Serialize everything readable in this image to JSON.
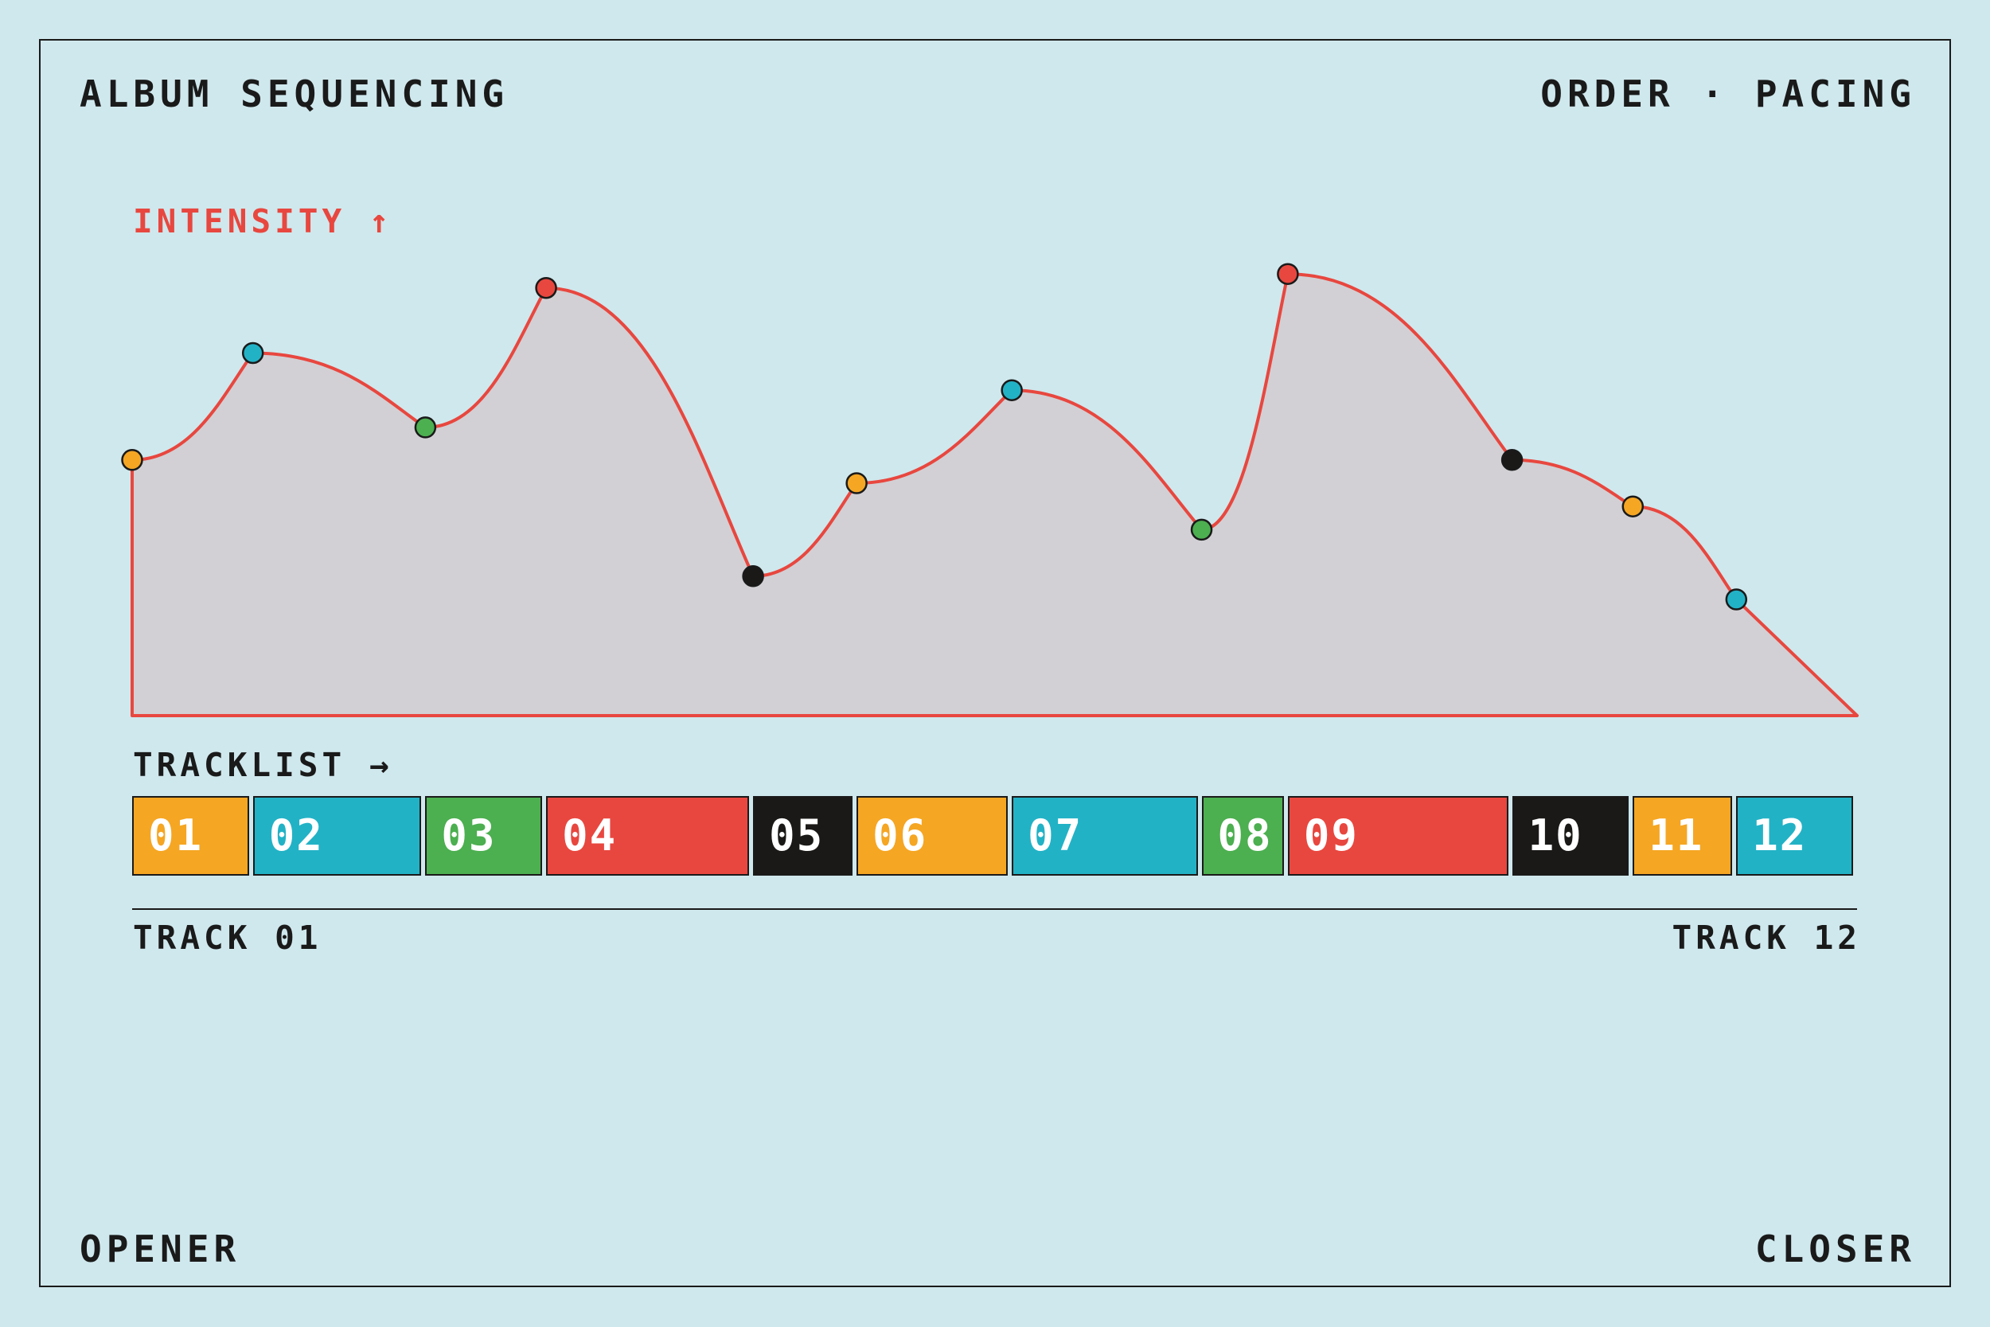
{
  "header": {
    "title": "ALBUM SEQUENCING",
    "subtitle": "ORDER · PACING"
  },
  "footer": {
    "left": "OPENER",
    "right": "CLOSER"
  },
  "colors": {
    "background": "#cfe8ed",
    "ink": "#1a1a1a",
    "curve": "#e8473f",
    "area": "#d2d0d4",
    "track_number_text": "#ffffff"
  },
  "chart_data": {
    "type": "area",
    "ylabel": "INTENSITY ↑",
    "xlabel": "TRACKLIST →",
    "ylim": [
      0,
      1
    ],
    "grid": false,
    "range_labels": {
      "start": "TRACK 01",
      "end": "TRACK 12"
    },
    "tracks": [
      {
        "label": "01",
        "length": 7,
        "intensity": 0.55,
        "color": "#f5a623"
      },
      {
        "label": "02",
        "length": 10,
        "intensity": 0.78,
        "color": "#22b2c6"
      },
      {
        "label": "03",
        "length": 7,
        "intensity": 0.62,
        "color": "#4caf50"
      },
      {
        "label": "04",
        "length": 12,
        "intensity": 0.92,
        "color": "#e8473f"
      },
      {
        "label": "05",
        "length": 6,
        "intensity": 0.3,
        "color": "#1b1917"
      },
      {
        "label": "06",
        "length": 9,
        "intensity": 0.5,
        "color": "#f5a623"
      },
      {
        "label": "07",
        "length": 11,
        "intensity": 0.7,
        "color": "#22b2c6"
      },
      {
        "label": "08",
        "length": 5,
        "intensity": 0.4,
        "color": "#4caf50"
      },
      {
        "label": "09",
        "length": 13,
        "intensity": 0.95,
        "color": "#e8473f"
      },
      {
        "label": "10",
        "length": 7,
        "intensity": 0.55,
        "color": "#1b1917"
      },
      {
        "label": "11",
        "length": 6,
        "intensity": 0.45,
        "color": "#f5a623"
      },
      {
        "label": "12",
        "length": 7,
        "intensity": 0.25,
        "color": "#22b2c6"
      }
    ]
  }
}
